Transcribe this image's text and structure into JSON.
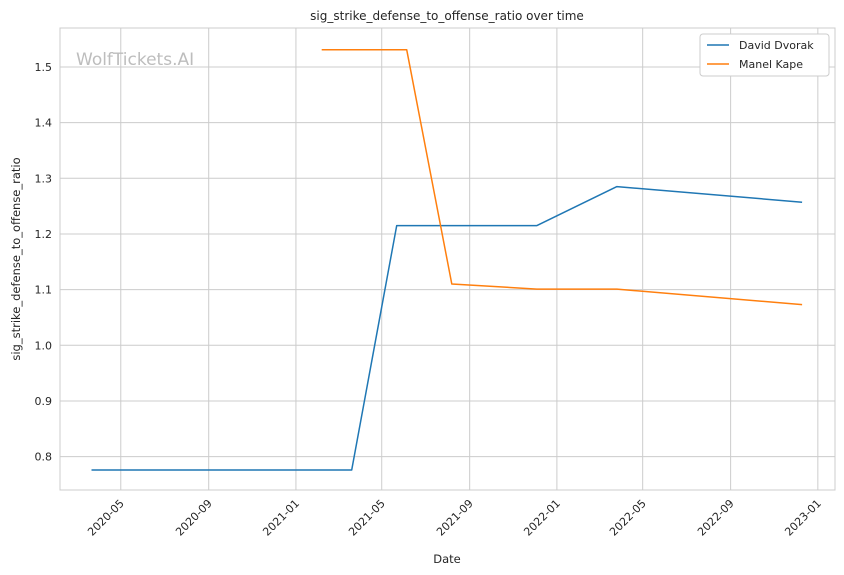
{
  "chart_data": {
    "type": "line",
    "title": "sig_strike_defense_to_offense_ratio over time",
    "xlabel": "Date",
    "ylabel": "sig_strike_defense_to_offense_ratio",
    "watermark": "WolfTickets.AI",
    "x_type": "date",
    "xlim": [
      "2020-02-06",
      "2023-01-25"
    ],
    "ylim": [
      0.74,
      1.57
    ],
    "x_ticks": [
      "2020-05",
      "2020-09",
      "2021-01",
      "2021-05",
      "2021-09",
      "2022-01",
      "2022-05",
      "2022-09",
      "2023-01"
    ],
    "y_ticks": [
      "0.8",
      "0.9",
      "1.0",
      "1.1",
      "1.2",
      "1.3",
      "1.4",
      "1.5"
    ],
    "grid": true,
    "legend_position": "top-right",
    "series": [
      {
        "name": "David Dvorak",
        "color": "#1f77b4",
        "points": [
          {
            "x": "2020-03-21",
            "y": 0.776
          },
          {
            "x": "2021-03-20",
            "y": 0.776
          },
          {
            "x": "2021-05-22",
            "y": 1.215
          },
          {
            "x": "2021-12-04",
            "y": 1.215
          },
          {
            "x": "2022-03-26",
            "y": 1.285
          },
          {
            "x": "2022-12-10",
            "y": 1.257
          }
        ]
      },
      {
        "name": "Manel Kape",
        "color": "#ff7f0e",
        "points": [
          {
            "x": "2021-02-06",
            "y": 1.531
          },
          {
            "x": "2021-06-05",
            "y": 1.531
          },
          {
            "x": "2021-08-07",
            "y": 1.11
          },
          {
            "x": "2021-12-04",
            "y": 1.101
          },
          {
            "x": "2022-03-26",
            "y": 1.101
          },
          {
            "x": "2022-12-10",
            "y": 1.073
          }
        ]
      }
    ]
  }
}
